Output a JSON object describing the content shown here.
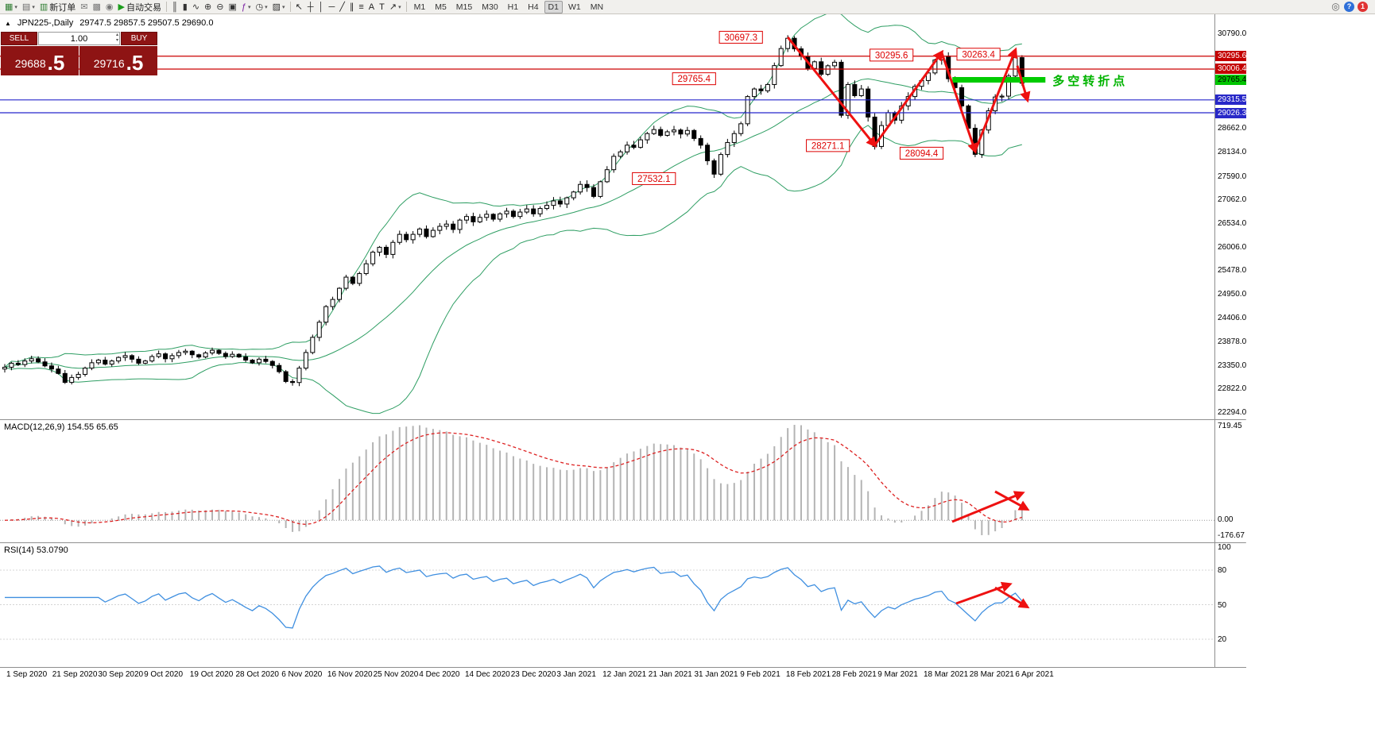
{
  "toolbar": {
    "items": [
      {
        "name": "new-chart",
        "glyph": "▦",
        "color": "#2f7d32",
        "dropdown": true
      },
      {
        "name": "profiles",
        "glyph": "▤",
        "color": "#6a6a6a",
        "dropdown": true
      },
      {
        "name": "new-order",
        "glyph": "▥",
        "color": "#2f7d32",
        "label": "新订单"
      },
      {
        "name": "market-watch",
        "glyph": "✉",
        "color": "#777777"
      },
      {
        "name": "data-window",
        "glyph": "▩",
        "color": "#777777"
      },
      {
        "name": "navigator",
        "glyph": "◉",
        "color": "#777777"
      },
      {
        "name": "auto-trading",
        "glyph": "▶",
        "color": "#1d9e1d",
        "label": "自动交易"
      },
      {
        "name": "sep-1",
        "sep": true
      },
      {
        "name": "bar-chart-type",
        "glyph": "║",
        "color": "#333333"
      },
      {
        "name": "candle-chart-type",
        "glyph": "▮",
        "color": "#333333"
      },
      {
        "name": "line-chart-type",
        "glyph": "∿",
        "color": "#333333"
      },
      {
        "name": "zoom-in",
        "glyph": "⊕",
        "color": "#333333"
      },
      {
        "name": "zoom-out",
        "glyph": "⊖",
        "color": "#333333"
      },
      {
        "name": "tile-windows",
        "glyph": "▣",
        "color": "#333333"
      },
      {
        "name": "indicators",
        "glyph": "ƒ",
        "color": "#7a1fa2",
        "dropdown": true
      },
      {
        "name": "periods",
        "glyph": "◷",
        "color": "#333333",
        "dropdown": true
      },
      {
        "name": "templates",
        "glyph": "▨",
        "color": "#333333",
        "dropdown": true
      },
      {
        "name": "sep-2",
        "sep": true
      },
      {
        "name": "cursor",
        "glyph": "↖",
        "color": "#222222"
      },
      {
        "name": "crosshair",
        "glyph": "┼",
        "color": "#222222"
      },
      {
        "name": "vertical-line",
        "glyph": "│",
        "color": "#222222"
      },
      {
        "name": "horizontal-line",
        "glyph": "─",
        "color": "#222222"
      },
      {
        "name": "trendline",
        "glyph": "╱",
        "color": "#222222"
      },
      {
        "name": "channel",
        "glyph": "∥",
        "color": "#222222"
      },
      {
        "name": "fibonacci",
        "glyph": "≡",
        "color": "#222222"
      },
      {
        "name": "text",
        "glyph": "A",
        "color": "#222222"
      },
      {
        "name": "text-label",
        "glyph": "T",
        "color": "#222222"
      },
      {
        "name": "arrow-objects",
        "glyph": "↗",
        "color": "#222222",
        "dropdown": true
      },
      {
        "name": "sep-3",
        "sep": true
      }
    ],
    "timeframes": [
      "M1",
      "M5",
      "M15",
      "M30",
      "H1",
      "H4",
      "D1",
      "W1",
      "MN"
    ],
    "active_timeframe": "D1",
    "right_items": [
      {
        "name": "search",
        "glyph": "◎",
        "bg": "",
        "fg": "#666666"
      },
      {
        "name": "help",
        "glyph": "?",
        "bg": "#2e6fd8",
        "fg": "#ffffff"
      },
      {
        "name": "notifications",
        "glyph": "1",
        "bg": "#e03232",
        "fg": "#ffffff"
      }
    ]
  },
  "icons": {
    "title_marker": "▲",
    "spinner_up": "▴",
    "spinner_down": "▾",
    "dropdown": "▾"
  },
  "chart": {
    "title": "JPN225-,Daily",
    "ohlc": "29747.5 29857.5 29507.5 29690.0"
  },
  "trade_panel": {
    "sell_label": "SELL",
    "buy_label": "BUY",
    "volume": "1.00",
    "sell_main": "29688",
    "sell_frac": ".5",
    "buy_main": "29716",
    "buy_frac": ".5"
  },
  "price_axis": {
    "ticks": [
      {
        "v": 30790.0,
        "t": "30790.0"
      },
      {
        "v": 28662.0,
        "t": "28662.0"
      },
      {
        "v": 28134.0,
        "t": "28134.0"
      },
      {
        "v": 27590.0,
        "t": "27590.0"
      },
      {
        "v": 27062.0,
        "t": "27062.0"
      },
      {
        "v": 26534.0,
        "t": "26534.0"
      },
      {
        "v": 26006.0,
        "t": "26006.0"
      },
      {
        "v": 25478.0,
        "t": "25478.0"
      },
      {
        "v": 24950.0,
        "t": "24950.0"
      },
      {
        "v": 24406.0,
        "t": "24406.0"
      },
      {
        "v": 23878.0,
        "t": "23878.0"
      },
      {
        "v": 23350.0,
        "t": "23350.0"
      },
      {
        "v": 22822.0,
        "t": "22822.0"
      },
      {
        "v": 22294.0,
        "t": "22294.0"
      }
    ],
    "badges": [
      {
        "v": 30295.6,
        "t": "30295.6",
        "bg": "#c40000",
        "fg": "#ffffff"
      },
      {
        "v": 30006.4,
        "t": "30006.4",
        "bg": "#c40000",
        "fg": "#ffffff"
      },
      {
        "v": 29765.4,
        "t": "29765.4",
        "bg": "#00c400",
        "fg": "#000000"
      },
      {
        "v": 29315.5,
        "t": "29315.5",
        "bg": "#2828c8",
        "fg": "#ffffff"
      },
      {
        "v": 29026.3,
        "t": "29026.3",
        "bg": "#2828c8",
        "fg": "#ffffff"
      }
    ]
  },
  "annotations": {
    "hlines": [
      {
        "v": 30295.6,
        "color": "#cc0000",
        "width": 1.2
      },
      {
        "v": 30006.4,
        "color": "#cc0000",
        "width": 1.2
      },
      {
        "v": 29315.5,
        "color": "#2626cc",
        "width": 1.2
      },
      {
        "v": 29026.3,
        "color": "#2626cc",
        "width": 1.2
      }
    ],
    "green_line": {
      "v": 29765.4,
      "d1": 141.6,
      "d2": 155.5,
      "color": "#00cc00",
      "width": 7,
      "label": "多空转折点",
      "label_color": "#00b400"
    },
    "callouts": [
      {
        "d": 110,
        "v": 30720,
        "t": "30697.3"
      },
      {
        "d": 132.5,
        "v": 30320,
        "t": "30295.6"
      },
      {
        "d": 145.5,
        "v": 30340,
        "t": "30263.4"
      },
      {
        "d": 103,
        "v": 29790,
        "t": "29765.4"
      },
      {
        "d": 123,
        "v": 28290,
        "t": "28271.1"
      },
      {
        "d": 137,
        "v": 28120,
        "t": "28094.4"
      },
      {
        "d": 97,
        "v": 27550,
        "t": "27532.1"
      }
    ],
    "zigzag": {
      "color": "#ee1111",
      "width": 3,
      "segments": [
        [
          117,
          30720,
          130,
          28300
        ],
        [
          130,
          28300,
          140,
          30380
        ],
        [
          140,
          30380,
          145,
          28170
        ],
        [
          145,
          28170,
          151,
          30430
        ],
        [
          151.3,
          30080,
          152.8,
          29320
        ]
      ]
    },
    "macd_arrows": [
      [
        1198,
        128,
        1286,
        92
      ],
      [
        1252,
        90,
        1292,
        112
      ]
    ],
    "rsi_arrows": [
      [
        1203,
        76,
        1270,
        52
      ],
      [
        1252,
        56,
        1292,
        80
      ]
    ],
    "arrow_color": "#ee1111"
  },
  "macd_panel": {
    "label": "MACD(12,26,9) 154.55 65.65",
    "axis_top": "719.45",
    "axis_zero": "0.00",
    "axis_bottom": "-176.67"
  },
  "rsi_panel": {
    "label": "RSI(14) 53.0790",
    "levels": [
      {
        "v": 100,
        "t": "100"
      },
      {
        "v": 80,
        "t": "80"
      },
      {
        "v": 50,
        "t": "50"
      },
      {
        "v": 20,
        "t": "20"
      }
    ]
  },
  "chart_data": {
    "type": "candlestick",
    "symbol": "JPN225-",
    "period": "Daily",
    "ylim": [
      22153,
      31235
    ],
    "x_labels": [
      "1 Sep 2020",
      "21 Sep 2020",
      "30 Sep 2020",
      "9 Oct 2020",
      "19 Oct 2020",
      "28 Oct 2020",
      "6 Nov 2020",
      "16 Nov 2020",
      "25 Nov 2020",
      "4 Dec 2020",
      "14 Dec 2020",
      "23 Dec 2020",
      "3 Jan 2021",
      "12 Jan 2021",
      "21 Jan 2021",
      "31 Jan 2021",
      "9 Feb 2021",
      "18 Feb 2021",
      "28 Feb 2021",
      "9 Mar 2021",
      "18 Mar 2021",
      "28 Mar 2021",
      "6 Apr 2021"
    ],
    "closes": [
      23320,
      23410,
      23380,
      23460,
      23510,
      23440,
      23350,
      23280,
      23180,
      22980,
      23090,
      23160,
      23300,
      23420,
      23480,
      23390,
      23460,
      23540,
      23580,
      23500,
      23410,
      23460,
      23560,
      23620,
      23510,
      23580,
      23650,
      23680,
      23600,
      23550,
      23640,
      23700,
      23630,
      23560,
      23610,
      23550,
      23480,
      23420,
      23500,
      23450,
      23360,
      23220,
      23000,
      22977,
      23300,
      23650,
      23990,
      24330,
      24680,
      24840,
      25090,
      25340,
      25200,
      25420,
      25640,
      25900,
      26010,
      25850,
      26120,
      26300,
      26180,
      26300,
      26420,
      26250,
      26390,
      26480,
      26530,
      26410,
      26620,
      26700,
      26580,
      26680,
      26750,
      26640,
      26760,
      26820,
      26700,
      26800,
      26870,
      26760,
      26880,
      26950,
      27050,
      26980,
      27120,
      27250,
      27420,
      27350,
      27150,
      27480,
      27750,
      28050,
      28150,
      28300,
      28250,
      28420,
      28560,
      28650,
      28520,
      28600,
      28640,
      28550,
      28630,
      28450,
      28300,
      27950,
      27650,
      28090,
      28360,
      28560,
      28780,
      29390,
      29560,
      29520,
      29660,
      30084,
      30467,
      30697,
      30460,
      30290,
      30020,
      30170,
      29890,
      30080,
      30160,
      28970,
      29660,
      29410,
      29560,
      28930,
      28271,
      28740,
      29030,
      28860,
      29180,
      29390,
      29620,
      29750,
      29920,
      30210,
      30295,
      29790,
      29590,
      29180,
      28680,
      28094,
      28640,
      29070,
      29380,
      29400,
      29850,
      30263,
      29690
    ],
    "indicators": [
      "Bollinger Bands (20,2)",
      "MACD(12,26,9)",
      "RSI(14)"
    ]
  }
}
